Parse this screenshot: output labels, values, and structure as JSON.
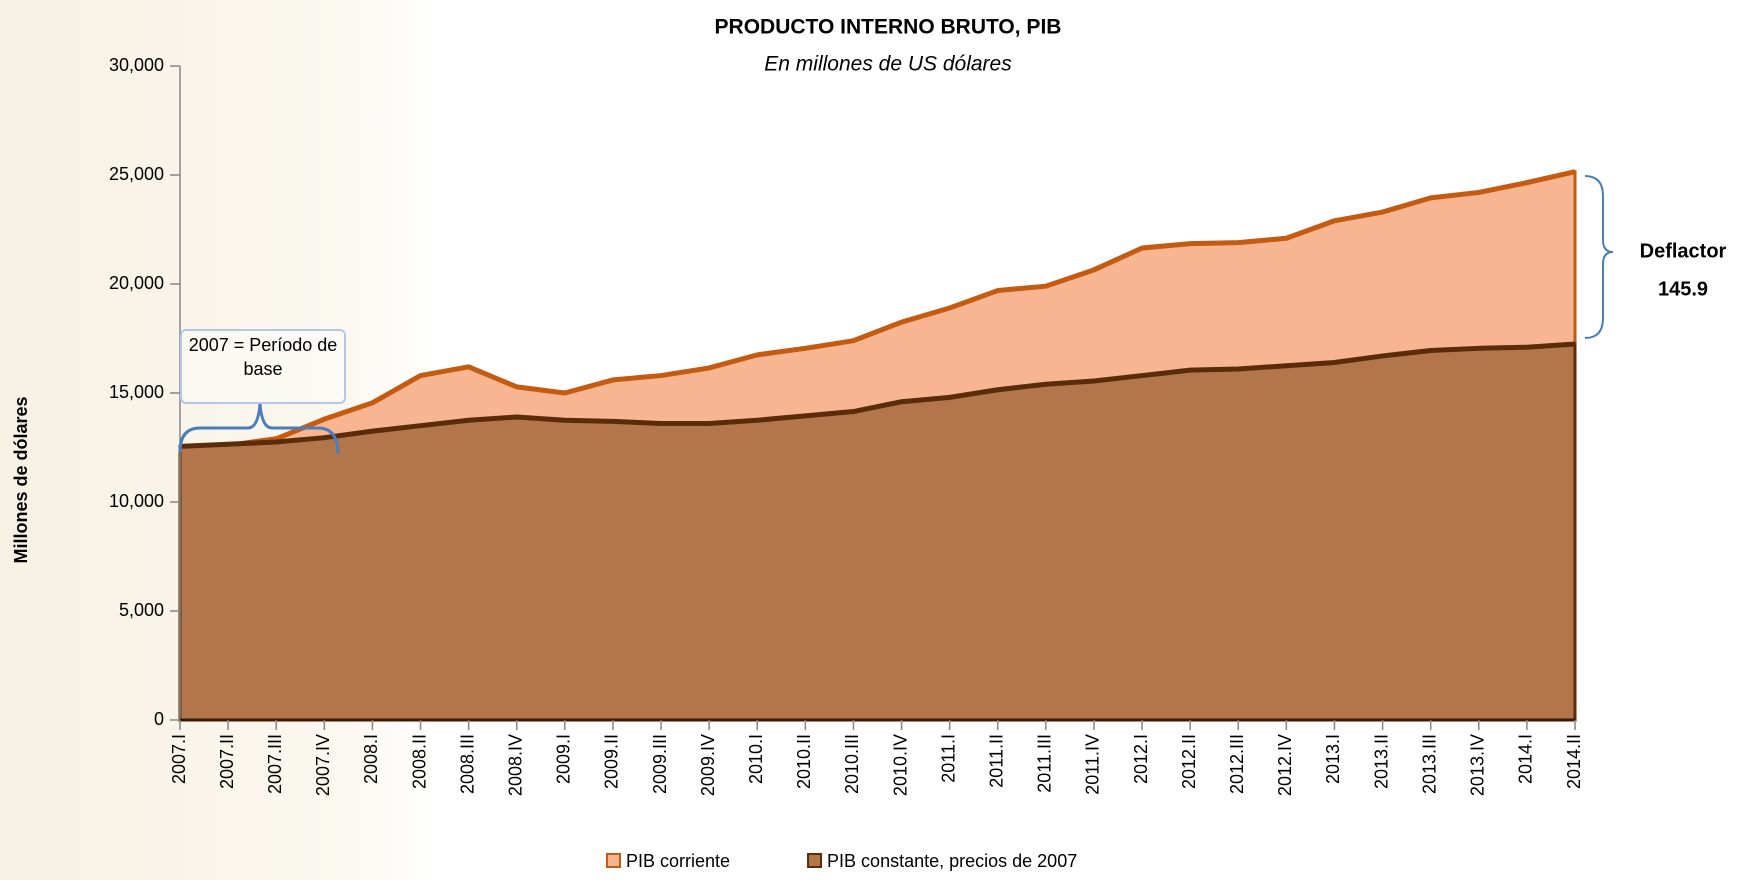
{
  "chart_data": {
    "type": "area",
    "title": "PRODUCTO INTERNO BRUTO, PIB",
    "subtitle": "En millones de US dólares",
    "y_label": "Millones de dólares",
    "categories": [
      "2007.I",
      "2007.II",
      "2007.III",
      "2007.IV",
      "2008.I",
      "2008.II",
      "2008.III",
      "2008.IV",
      "2009.I",
      "2009.II",
      "2009.III",
      "2009.IV",
      "2010.I",
      "2010.II",
      "2010.III",
      "2010.IV",
      "2011.I",
      "2011.II",
      "2011.III",
      "2011.IV",
      "2012.I",
      "2012.II",
      "2012.III",
      "2012.IV",
      "2013.I",
      "2013.II",
      "2013.III",
      "2013.IV",
      "2014.I",
      "2014.II"
    ],
    "series": [
      {
        "name": "PIB corriente",
        "color": "#f8b592",
        "line_color": "#c55a11",
        "values": [
          12000,
          12600,
          12900,
          13800,
          14550,
          15800,
          16200,
          15280,
          15000,
          15600,
          15800,
          16150,
          16750,
          17050,
          17400,
          18250,
          18900,
          19700,
          19900,
          20650,
          21650,
          21850,
          21900,
          22100,
          22900,
          23300,
          23950,
          24200,
          24650,
          25150
        ]
      },
      {
        "name": "PIB constante, precios de 2007",
        "color": "#b3754a",
        "line_color": "#5b2c0a",
        "values": [
          12550,
          12650,
          12750,
          12950,
          13250,
          13500,
          13750,
          13900,
          13750,
          13700,
          13600,
          13600,
          13750,
          13950,
          14150,
          14600,
          14800,
          15150,
          15400,
          15550,
          15800,
          16050,
          16100,
          16250,
          16400,
          16700,
          16950,
          17050,
          17100,
          17250
        ]
      }
    ],
    "ylim": [
      0,
      30000
    ],
    "yticks": [
      {
        "value": 0,
        "label": "0"
      },
      {
        "value": 5000,
        "label": "5,000"
      },
      {
        "value": 10000,
        "label": "10,000"
      },
      {
        "value": 15000,
        "label": "15,000"
      },
      {
        "value": 20000,
        "label": "20,000"
      },
      {
        "value": 25000,
        "label": "25,000"
      },
      {
        "value": 30000,
        "label": "30,000"
      }
    ],
    "grid": false,
    "base_note": "2007 = Período de base",
    "deflactor": {
      "label": "Deflactor",
      "value": 145.9
    }
  }
}
